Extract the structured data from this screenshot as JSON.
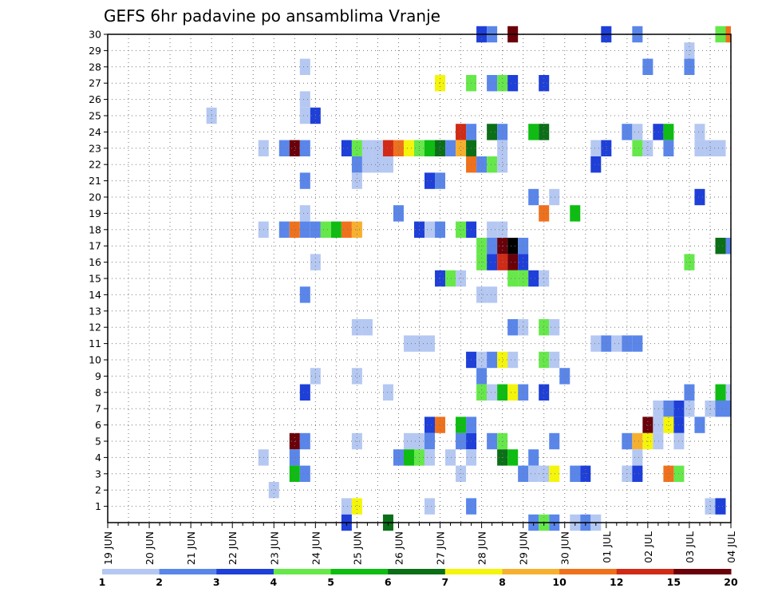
{
  "chart_data": {
    "type": "heatmap",
    "title": "GEFS 6hr padavine po ansamblima Vranje",
    "xlabel": "",
    "ylabel": "",
    "x_ticks": [
      "19 JUN",
      "20 JUN",
      "21 JUN",
      "22 JUN",
      "23 JUN",
      "24 JUN",
      "25 JUN",
      "26 JUN",
      "27 JUN",
      "28 JUN",
      "29 JUN",
      "30 JUN",
      "01 JUL",
      "02 JUL",
      "03 JUL",
      "04 JUL"
    ],
    "x_step": "6 h",
    "n_steps": 61,
    "y_ticks": [
      1,
      2,
      3,
      4,
      5,
      6,
      7,
      8,
      9,
      10,
      11,
      12,
      13,
      14,
      15,
      16,
      17,
      18,
      19,
      20,
      21,
      22,
      23,
      24,
      25,
      26,
      27,
      28,
      29,
      30
    ],
    "ylim": [
      0,
      30
    ],
    "grid": true,
    "legend": {
      "position": "bottom",
      "labels": [
        "1",
        "2",
        "3",
        "4",
        "5",
        "6",
        "7",
        "8",
        "10",
        "12",
        "15",
        "20"
      ],
      "colors": [
        "#b5c8f2",
        "#5a86ea",
        "#1e3fd8",
        "#66e84a",
        "#0dbd11",
        "#0b6f17",
        "#f4f50a",
        "#f7b02e",
        "#f0711b",
        "#d12a16",
        "#6a0009"
      ]
    },
    "series": [
      {
        "member": 30,
        "cells": [
          [
            36,
            2
          ],
          [
            37,
            1
          ],
          [
            39,
            10
          ],
          [
            48,
            2
          ],
          [
            51,
            1
          ],
          [
            59,
            3
          ],
          [
            60,
            8
          ]
        ]
      },
      {
        "member": 29,
        "cells": [
          [
            56,
            0
          ]
        ]
      },
      {
        "member": 28,
        "cells": [
          [
            19,
            0
          ],
          [
            52,
            1
          ],
          [
            56,
            1
          ]
        ]
      },
      {
        "member": 27,
        "cells": [
          [
            32,
            6
          ],
          [
            35,
            3
          ],
          [
            37,
            1
          ],
          [
            38,
            3
          ],
          [
            39,
            2
          ],
          [
            42,
            2
          ]
        ]
      },
      {
        "member": 26,
        "cells": [
          [
            19,
            0
          ]
        ]
      },
      {
        "member": 25,
        "cells": [
          [
            10,
            0
          ],
          [
            19,
            0
          ],
          [
            20,
            2
          ]
        ]
      },
      {
        "member": 24,
        "cells": [
          [
            34,
            9
          ],
          [
            35,
            1
          ],
          [
            37,
            5
          ],
          [
            38,
            1
          ],
          [
            41,
            4
          ],
          [
            42,
            5
          ],
          [
            50,
            1
          ],
          [
            51,
            0
          ],
          [
            53,
            2
          ],
          [
            54,
            4
          ],
          [
            57,
            0
          ]
        ]
      },
      {
        "member": 23,
        "cells": [
          [
            15,
            0
          ],
          [
            17,
            1
          ],
          [
            18,
            10
          ],
          [
            19,
            1
          ],
          [
            23,
            2
          ],
          [
            24,
            3
          ],
          [
            25,
            0
          ],
          [
            26,
            0
          ],
          [
            27,
            9
          ],
          [
            28,
            8
          ],
          [
            29,
            6
          ],
          [
            30,
            3
          ],
          [
            31,
            4
          ],
          [
            32,
            5
          ],
          [
            33,
            1
          ],
          [
            34,
            7
          ],
          [
            35,
            5
          ],
          [
            38,
            0
          ],
          [
            47,
            0
          ],
          [
            48,
            2
          ],
          [
            51,
            3
          ],
          [
            52,
            0
          ],
          [
            54,
            1
          ],
          [
            57,
            0
          ],
          [
            58,
            0
          ],
          [
            59,
            0
          ]
        ]
      },
      {
        "member": 22,
        "cells": [
          [
            24,
            1
          ],
          [
            25,
            0
          ],
          [
            26,
            0
          ],
          [
            27,
            0
          ],
          [
            35,
            8
          ],
          [
            36,
            1
          ],
          [
            37,
            3
          ],
          [
            38,
            0
          ],
          [
            47,
            2
          ]
        ]
      },
      {
        "member": 21,
        "cells": [
          [
            19,
            1
          ],
          [
            24,
            0
          ],
          [
            31,
            2
          ],
          [
            32,
            1
          ]
        ]
      },
      {
        "member": 20,
        "cells": [
          [
            41,
            1
          ],
          [
            43,
            0
          ],
          [
            57,
            2
          ]
        ]
      },
      {
        "member": 19,
        "cells": [
          [
            19,
            0
          ],
          [
            28,
            1
          ],
          [
            42,
            8
          ],
          [
            45,
            4
          ]
        ]
      },
      {
        "member": 18,
        "cells": [
          [
            15,
            0
          ],
          [
            17,
            1
          ],
          [
            18,
            8
          ],
          [
            19,
            1
          ],
          [
            20,
            1
          ],
          [
            21,
            3
          ],
          [
            22,
            4
          ],
          [
            23,
            8
          ],
          [
            24,
            7
          ],
          [
            30,
            2
          ],
          [
            31,
            0
          ],
          [
            32,
            1
          ],
          [
            34,
            3
          ],
          [
            35,
            2
          ],
          [
            37,
            0
          ],
          [
            38,
            0
          ]
        ]
      },
      {
        "member": 17,
        "cells": [
          [
            36,
            3
          ],
          [
            37,
            1
          ],
          [
            38,
            10
          ],
          [
            39,
            11
          ],
          [
            40,
            1
          ],
          [
            59,
            5
          ],
          [
            60,
            1
          ]
        ]
      },
      {
        "member": 16,
        "cells": [
          [
            20,
            0
          ],
          [
            36,
            3
          ],
          [
            37,
            2
          ],
          [
            38,
            9
          ],
          [
            39,
            10
          ],
          [
            40,
            2
          ],
          [
            56,
            3
          ]
        ]
      },
      {
        "member": 15,
        "cells": [
          [
            32,
            2
          ],
          [
            33,
            3
          ],
          [
            34,
            0
          ],
          [
            39,
            3
          ],
          [
            40,
            3
          ],
          [
            41,
            2
          ],
          [
            42,
            0
          ]
        ]
      },
      {
        "member": 14,
        "cells": [
          [
            19,
            1
          ],
          [
            36,
            0
          ],
          [
            37,
            0
          ]
        ]
      },
      {
        "member": 13,
        "cells": []
      },
      {
        "member": 12,
        "cells": [
          [
            24,
            0
          ],
          [
            25,
            0
          ],
          [
            39,
            1
          ],
          [
            40,
            0
          ],
          [
            42,
            3
          ],
          [
            43,
            0
          ]
        ]
      },
      {
        "member": 11,
        "cells": [
          [
            29,
            0
          ],
          [
            30,
            0
          ],
          [
            31,
            0
          ],
          [
            47,
            0
          ],
          [
            48,
            1
          ],
          [
            49,
            0
          ],
          [
            50,
            1
          ],
          [
            51,
            1
          ]
        ]
      },
      {
        "member": 10,
        "cells": [
          [
            35,
            2
          ],
          [
            36,
            0
          ],
          [
            37,
            1
          ],
          [
            38,
            6
          ],
          [
            39,
            0
          ],
          [
            42,
            3
          ],
          [
            43,
            0
          ]
        ]
      },
      {
        "member": 9,
        "cells": [
          [
            20,
            0
          ],
          [
            24,
            0
          ],
          [
            36,
            1
          ],
          [
            44,
            1
          ]
        ]
      },
      {
        "member": 8,
        "cells": [
          [
            19,
            2
          ],
          [
            27,
            0
          ],
          [
            36,
            3
          ],
          [
            37,
            0
          ],
          [
            38,
            4
          ],
          [
            39,
            6
          ],
          [
            40,
            1
          ],
          [
            42,
            2
          ],
          [
            56,
            1
          ],
          [
            59,
            4
          ],
          [
            60,
            0
          ]
        ]
      },
      {
        "member": 7,
        "cells": [
          [
            53,
            0
          ],
          [
            54,
            1
          ],
          [
            55,
            2
          ],
          [
            56,
            0
          ],
          [
            58,
            0
          ],
          [
            59,
            1
          ],
          [
            60,
            1
          ]
        ]
      },
      {
        "member": 6,
        "cells": [
          [
            31,
            2
          ],
          [
            32,
            8
          ],
          [
            34,
            4
          ],
          [
            35,
            1
          ],
          [
            52,
            10
          ],
          [
            53,
            0
          ],
          [
            54,
            6
          ],
          [
            55,
            2
          ],
          [
            57,
            1
          ]
        ]
      },
      {
        "member": 5,
        "cells": [
          [
            18,
            10
          ],
          [
            19,
            1
          ],
          [
            24,
            0
          ],
          [
            29,
            0
          ],
          [
            30,
            0
          ],
          [
            31,
            1
          ],
          [
            34,
            1
          ],
          [
            35,
            2
          ],
          [
            37,
            1
          ],
          [
            38,
            3
          ],
          [
            43,
            1
          ],
          [
            50,
            1
          ],
          [
            51,
            7
          ],
          [
            52,
            6
          ],
          [
            53,
            0
          ],
          [
            55,
            0
          ]
        ]
      },
      {
        "member": 4,
        "cells": [
          [
            15,
            0
          ],
          [
            18,
            1
          ],
          [
            28,
            1
          ],
          [
            29,
            4
          ],
          [
            30,
            3
          ],
          [
            31,
            0
          ],
          [
            33,
            0
          ],
          [
            35,
            0
          ],
          [
            38,
            5
          ],
          [
            39,
            4
          ],
          [
            41,
            1
          ],
          [
            51,
            0
          ]
        ]
      },
      {
        "member": 3,
        "cells": [
          [
            18,
            4
          ],
          [
            19,
            1
          ],
          [
            34,
            0
          ],
          [
            40,
            1
          ],
          [
            41,
            0
          ],
          [
            42,
            0
          ],
          [
            43,
            6
          ],
          [
            45,
            1
          ],
          [
            46,
            2
          ],
          [
            50,
            0
          ],
          [
            51,
            2
          ],
          [
            54,
            8
          ],
          [
            55,
            3
          ]
        ]
      },
      {
        "member": 2,
        "cells": [
          [
            16,
            0
          ]
        ]
      },
      {
        "member": 1,
        "cells": [
          [
            23,
            0
          ],
          [
            24,
            6
          ],
          [
            31,
            0
          ],
          [
            35,
            1
          ],
          [
            58,
            0
          ],
          [
            59,
            2
          ]
        ]
      },
      {
        "member": 0,
        "cells": [
          [
            23,
            2
          ],
          [
            27,
            5
          ],
          [
            41,
            1
          ],
          [
            42,
            3
          ],
          [
            43,
            1
          ],
          [
            45,
            0
          ],
          [
            46,
            1
          ],
          [
            47,
            0
          ]
        ]
      }
    ]
  }
}
